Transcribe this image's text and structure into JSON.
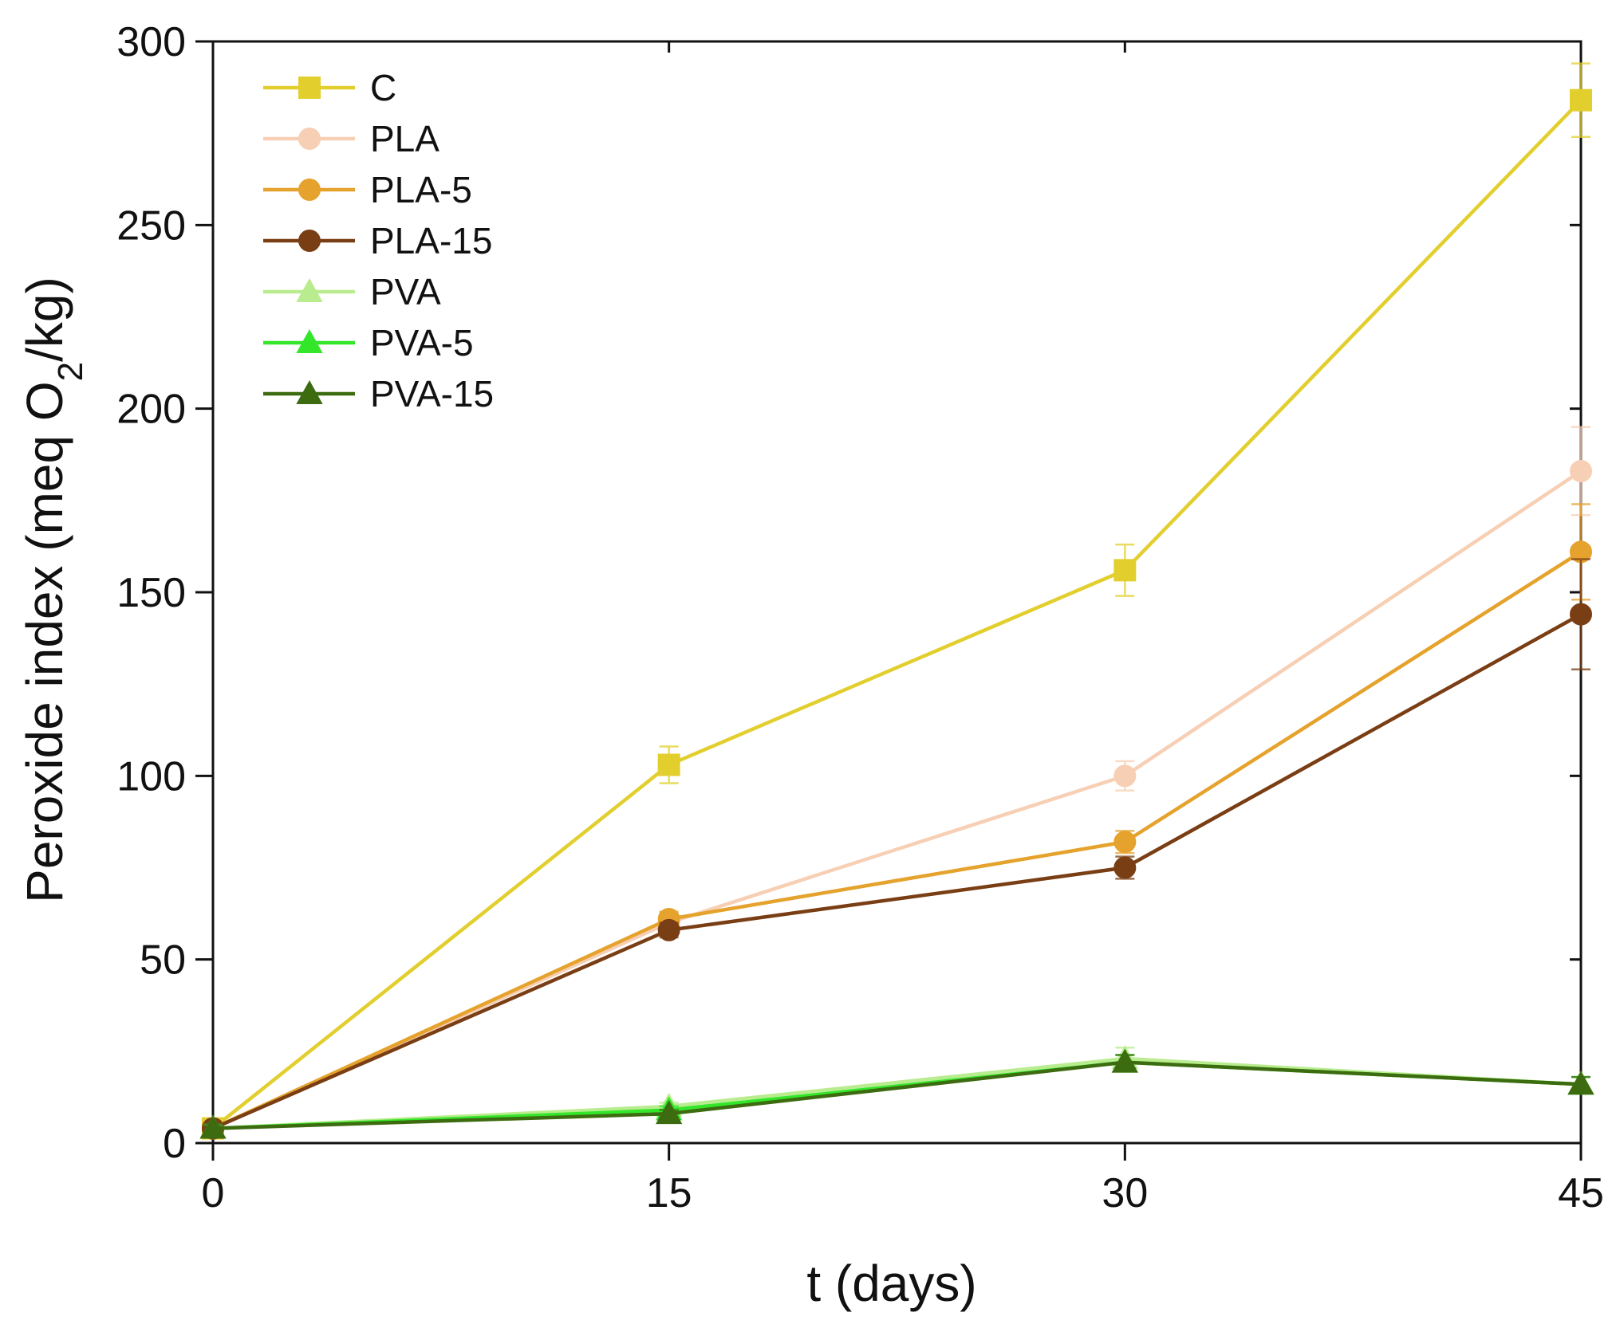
{
  "chart_data": {
    "type": "line",
    "xlabel": "t (days)",
    "ylabel": {
      "prefix": "Peroxide index (meq O",
      "subscript": "2",
      "suffix": "/kg)"
    },
    "xlim": [
      0,
      45
    ],
    "ylim": [
      0,
      300
    ],
    "x_ticks": [
      "0",
      "15",
      "30",
      "45"
    ],
    "y_ticks": [
      "0",
      "50",
      "100",
      "150",
      "200",
      "250",
      "300"
    ],
    "x_tick_values": [
      0,
      15,
      30,
      45
    ],
    "y_tick_values": [
      0,
      50,
      100,
      150,
      200,
      250,
      300
    ],
    "grid": false,
    "legend_position": "top-left",
    "x": [
      0,
      15,
      30,
      45
    ],
    "series": [
      {
        "name": "C",
        "marker": "square",
        "color": "#E2CF2E",
        "values": [
          4,
          103,
          156,
          284
        ],
        "errors": [
          1,
          5,
          7,
          10
        ]
      },
      {
        "name": "PLA",
        "marker": "circle",
        "color": "#F7CFB4",
        "values": [
          4,
          60,
          100,
          183
        ],
        "errors": [
          1,
          2,
          4,
          12
        ]
      },
      {
        "name": "PLA-5",
        "marker": "circle",
        "color": "#E5A22C",
        "values": [
          4,
          61,
          82,
          161
        ],
        "errors": [
          1,
          2,
          3,
          13
        ]
      },
      {
        "name": "PLA-15",
        "marker": "circle",
        "color": "#7A3E14",
        "values": [
          4,
          58,
          75,
          144
        ],
        "errors": [
          1,
          2,
          3,
          15
        ]
      },
      {
        "name": "PVA",
        "marker": "triangle",
        "color": "#B9EC8E",
        "values": [
          4,
          10,
          23,
          16
        ],
        "errors": [
          1,
          1,
          3,
          2
        ]
      },
      {
        "name": "PVA-5",
        "marker": "triangle",
        "color": "#34E62A",
        "values": [
          4,
          9,
          22,
          16
        ],
        "errors": [
          1,
          1,
          2,
          2
        ]
      },
      {
        "name": "PVA-15",
        "marker": "triangle",
        "color": "#3D6B10",
        "values": [
          4,
          8,
          22,
          16
        ],
        "errors": [
          1,
          1,
          2,
          2
        ]
      }
    ]
  }
}
